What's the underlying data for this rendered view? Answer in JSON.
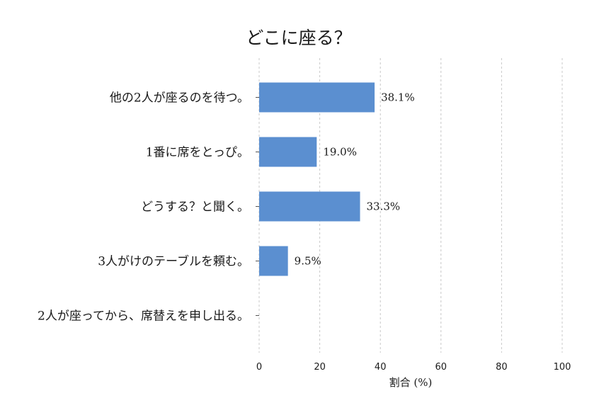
{
  "chart_data": {
    "type": "bar",
    "orientation": "horizontal",
    "title": "どこに座る？",
    "xlabel": "割合 (%)",
    "ylabel": "",
    "xlim": [
      0,
      100
    ],
    "xticks": [
      0,
      20,
      40,
      60,
      80,
      100
    ],
    "grid": "vertical-dashed",
    "categories": [
      "他の2人が座るのを待つ。",
      "1番に席をとっぴ。",
      "どうする？と聞く。",
      "3人がけのテーブルを頼む。",
      "2人が座ってから、席替えを申し出る。"
    ],
    "values": [
      38.1,
      19.0,
      33.3,
      9.5,
      0
    ],
    "value_labels": [
      "38.1%",
      "19.0%",
      "33.3%",
      "9.5%",
      ""
    ],
    "bar_color": "#5b8fd0"
  }
}
